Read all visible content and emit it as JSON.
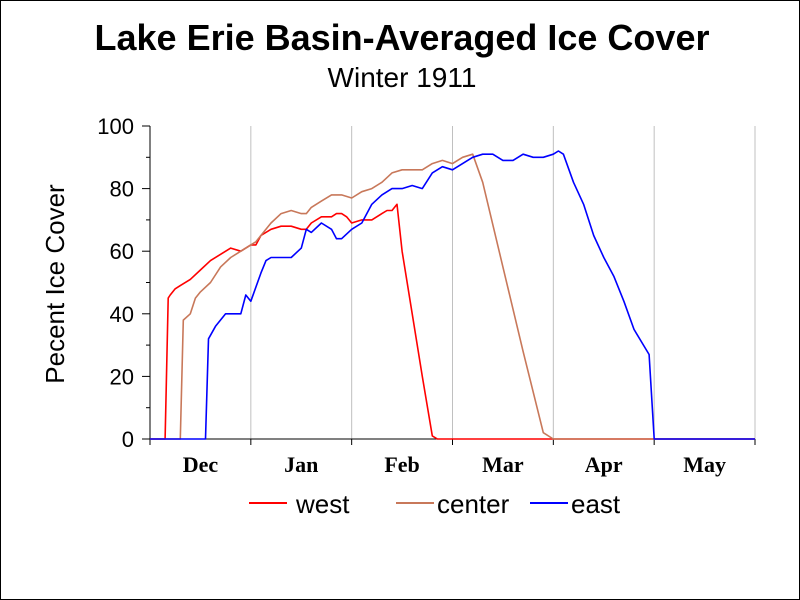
{
  "chart_data": {
    "type": "line",
    "title": "Lake Erie Basin-Averaged Ice Cover",
    "subtitle": "Winter 1911",
    "ylabel": "Pecent Ice Cover",
    "xlabel": "",
    "ylim": [
      0,
      100
    ],
    "yticks": [
      "0",
      "20",
      "40",
      "60",
      "80",
      "100"
    ],
    "xlim": [
      0,
      6
    ],
    "months": [
      "Dec",
      "Jan",
      "Feb",
      "Mar",
      "Apr",
      "May"
    ],
    "grid": "vertical",
    "legend_position": "bottom",
    "series": [
      {
        "name": "west",
        "color": "#ff0000",
        "x": [
          0.0,
          0.15,
          0.18,
          0.2,
          0.25,
          0.3,
          0.4,
          0.5,
          0.6,
          0.7,
          0.8,
          0.9,
          1.0,
          1.05,
          1.1,
          1.2,
          1.3,
          1.4,
          1.5,
          1.55,
          1.6,
          1.7,
          1.8,
          1.85,
          1.9,
          1.95,
          2.0,
          2.1,
          2.2,
          2.3,
          2.35,
          2.4,
          2.45,
          2.5,
          2.6,
          2.7,
          2.8,
          2.85,
          2.9,
          3.0,
          4.0,
          5.0,
          6.0
        ],
        "y": [
          0,
          0,
          45,
          46,
          48,
          49,
          51,
          54,
          57,
          59,
          61,
          60,
          62,
          62,
          65,
          67,
          68,
          68,
          67,
          67,
          69,
          71,
          71,
          72,
          72,
          71,
          69,
          70,
          70,
          72,
          73,
          73,
          75,
          60,
          40,
          20,
          1,
          0,
          0,
          0,
          0,
          0,
          0
        ]
      },
      {
        "name": "center",
        "color": "#c8785a",
        "x": [
          0.0,
          0.3,
          0.33,
          0.4,
          0.45,
          0.5,
          0.6,
          0.7,
          0.8,
          0.9,
          1.0,
          1.05,
          1.1,
          1.2,
          1.3,
          1.4,
          1.5,
          1.55,
          1.6,
          1.7,
          1.8,
          1.9,
          2.0,
          2.1,
          2.2,
          2.3,
          2.4,
          2.5,
          2.6,
          2.7,
          2.8,
          2.9,
          3.0,
          3.1,
          3.2,
          3.3,
          3.5,
          3.7,
          3.9,
          4.0,
          5.0,
          6.0
        ],
        "y": [
          0,
          0,
          38,
          40,
          45,
          47,
          50,
          55,
          58,
          60,
          62,
          63,
          65,
          69,
          72,
          73,
          72,
          72,
          74,
          76,
          78,
          78,
          77,
          79,
          80,
          82,
          85,
          86,
          86,
          86,
          88,
          89,
          88,
          90,
          91,
          82,
          55,
          28,
          2,
          0,
          0,
          0
        ]
      },
      {
        "name": "east",
        "color": "#0000ff",
        "x": [
          0.0,
          0.55,
          0.58,
          0.65,
          0.75,
          0.9,
          0.95,
          1.0,
          1.1,
          1.15,
          1.2,
          1.3,
          1.4,
          1.5,
          1.55,
          1.6,
          1.7,
          1.8,
          1.85,
          1.9,
          2.0,
          2.1,
          2.2,
          2.3,
          2.4,
          2.5,
          2.6,
          2.7,
          2.8,
          2.9,
          3.0,
          3.1,
          3.2,
          3.3,
          3.4,
          3.5,
          3.6,
          3.7,
          3.8,
          3.9,
          4.0,
          4.05,
          4.1,
          4.2,
          4.3,
          4.4,
          4.5,
          4.6,
          4.7,
          4.8,
          4.95,
          5.0,
          6.0
        ],
        "y": [
          0,
          0,
          32,
          36,
          40,
          40,
          46,
          44,
          53,
          57,
          58,
          58,
          58,
          61,
          67,
          66,
          69,
          67,
          64,
          64,
          67,
          69,
          75,
          78,
          80,
          80,
          81,
          80,
          85,
          87,
          86,
          88,
          90,
          91,
          91,
          89,
          89,
          91,
          90,
          90,
          91,
          92,
          91,
          82,
          75,
          65,
          58,
          52,
          44,
          35,
          27,
          0,
          0
        ]
      }
    ]
  }
}
